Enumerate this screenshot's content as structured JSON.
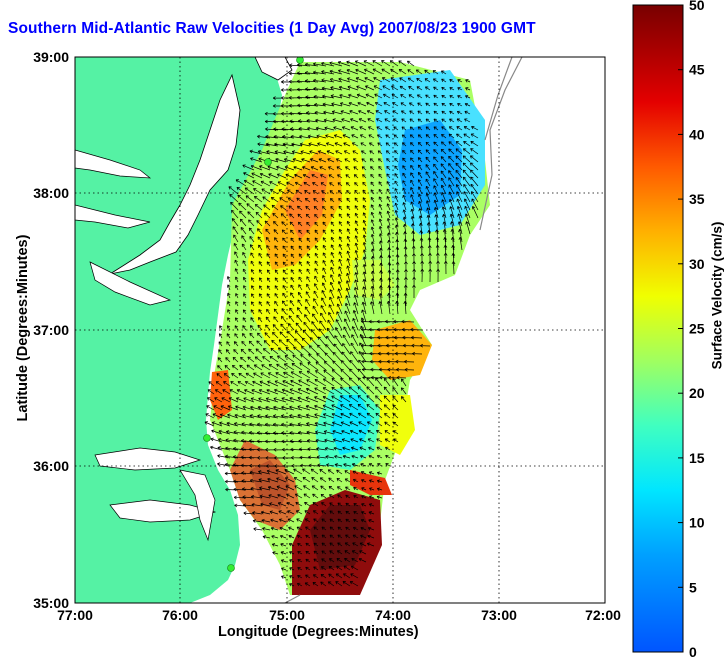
{
  "title": "Southern Mid-Atlantic Raw Velocities (1 Day Avg) 2007/08/23 1900 GMT",
  "xlabel": "Longitude (Degrees:Minutes)",
  "ylabel": "Latitude (Degrees:Minutes)",
  "colorbar_label": "Surface Velocity (cm/s)",
  "x_ticks": [
    "77:00",
    "76:00",
    "75:00",
    "74:00",
    "73:00",
    "72:00"
  ],
  "y_ticks": [
    "39:00",
    "38:00",
    "37:00",
    "36:00",
    "35:00"
  ],
  "colorbar_ticks": [
    "0",
    "5",
    "10",
    "15",
    "20",
    "25",
    "30",
    "35",
    "40",
    "45",
    "50"
  ],
  "colors": {
    "land": "#55f2a4",
    "water": "#ffffff",
    "title": "#0000ff",
    "vector": "#000000",
    "station": "#33ee33"
  }
}
